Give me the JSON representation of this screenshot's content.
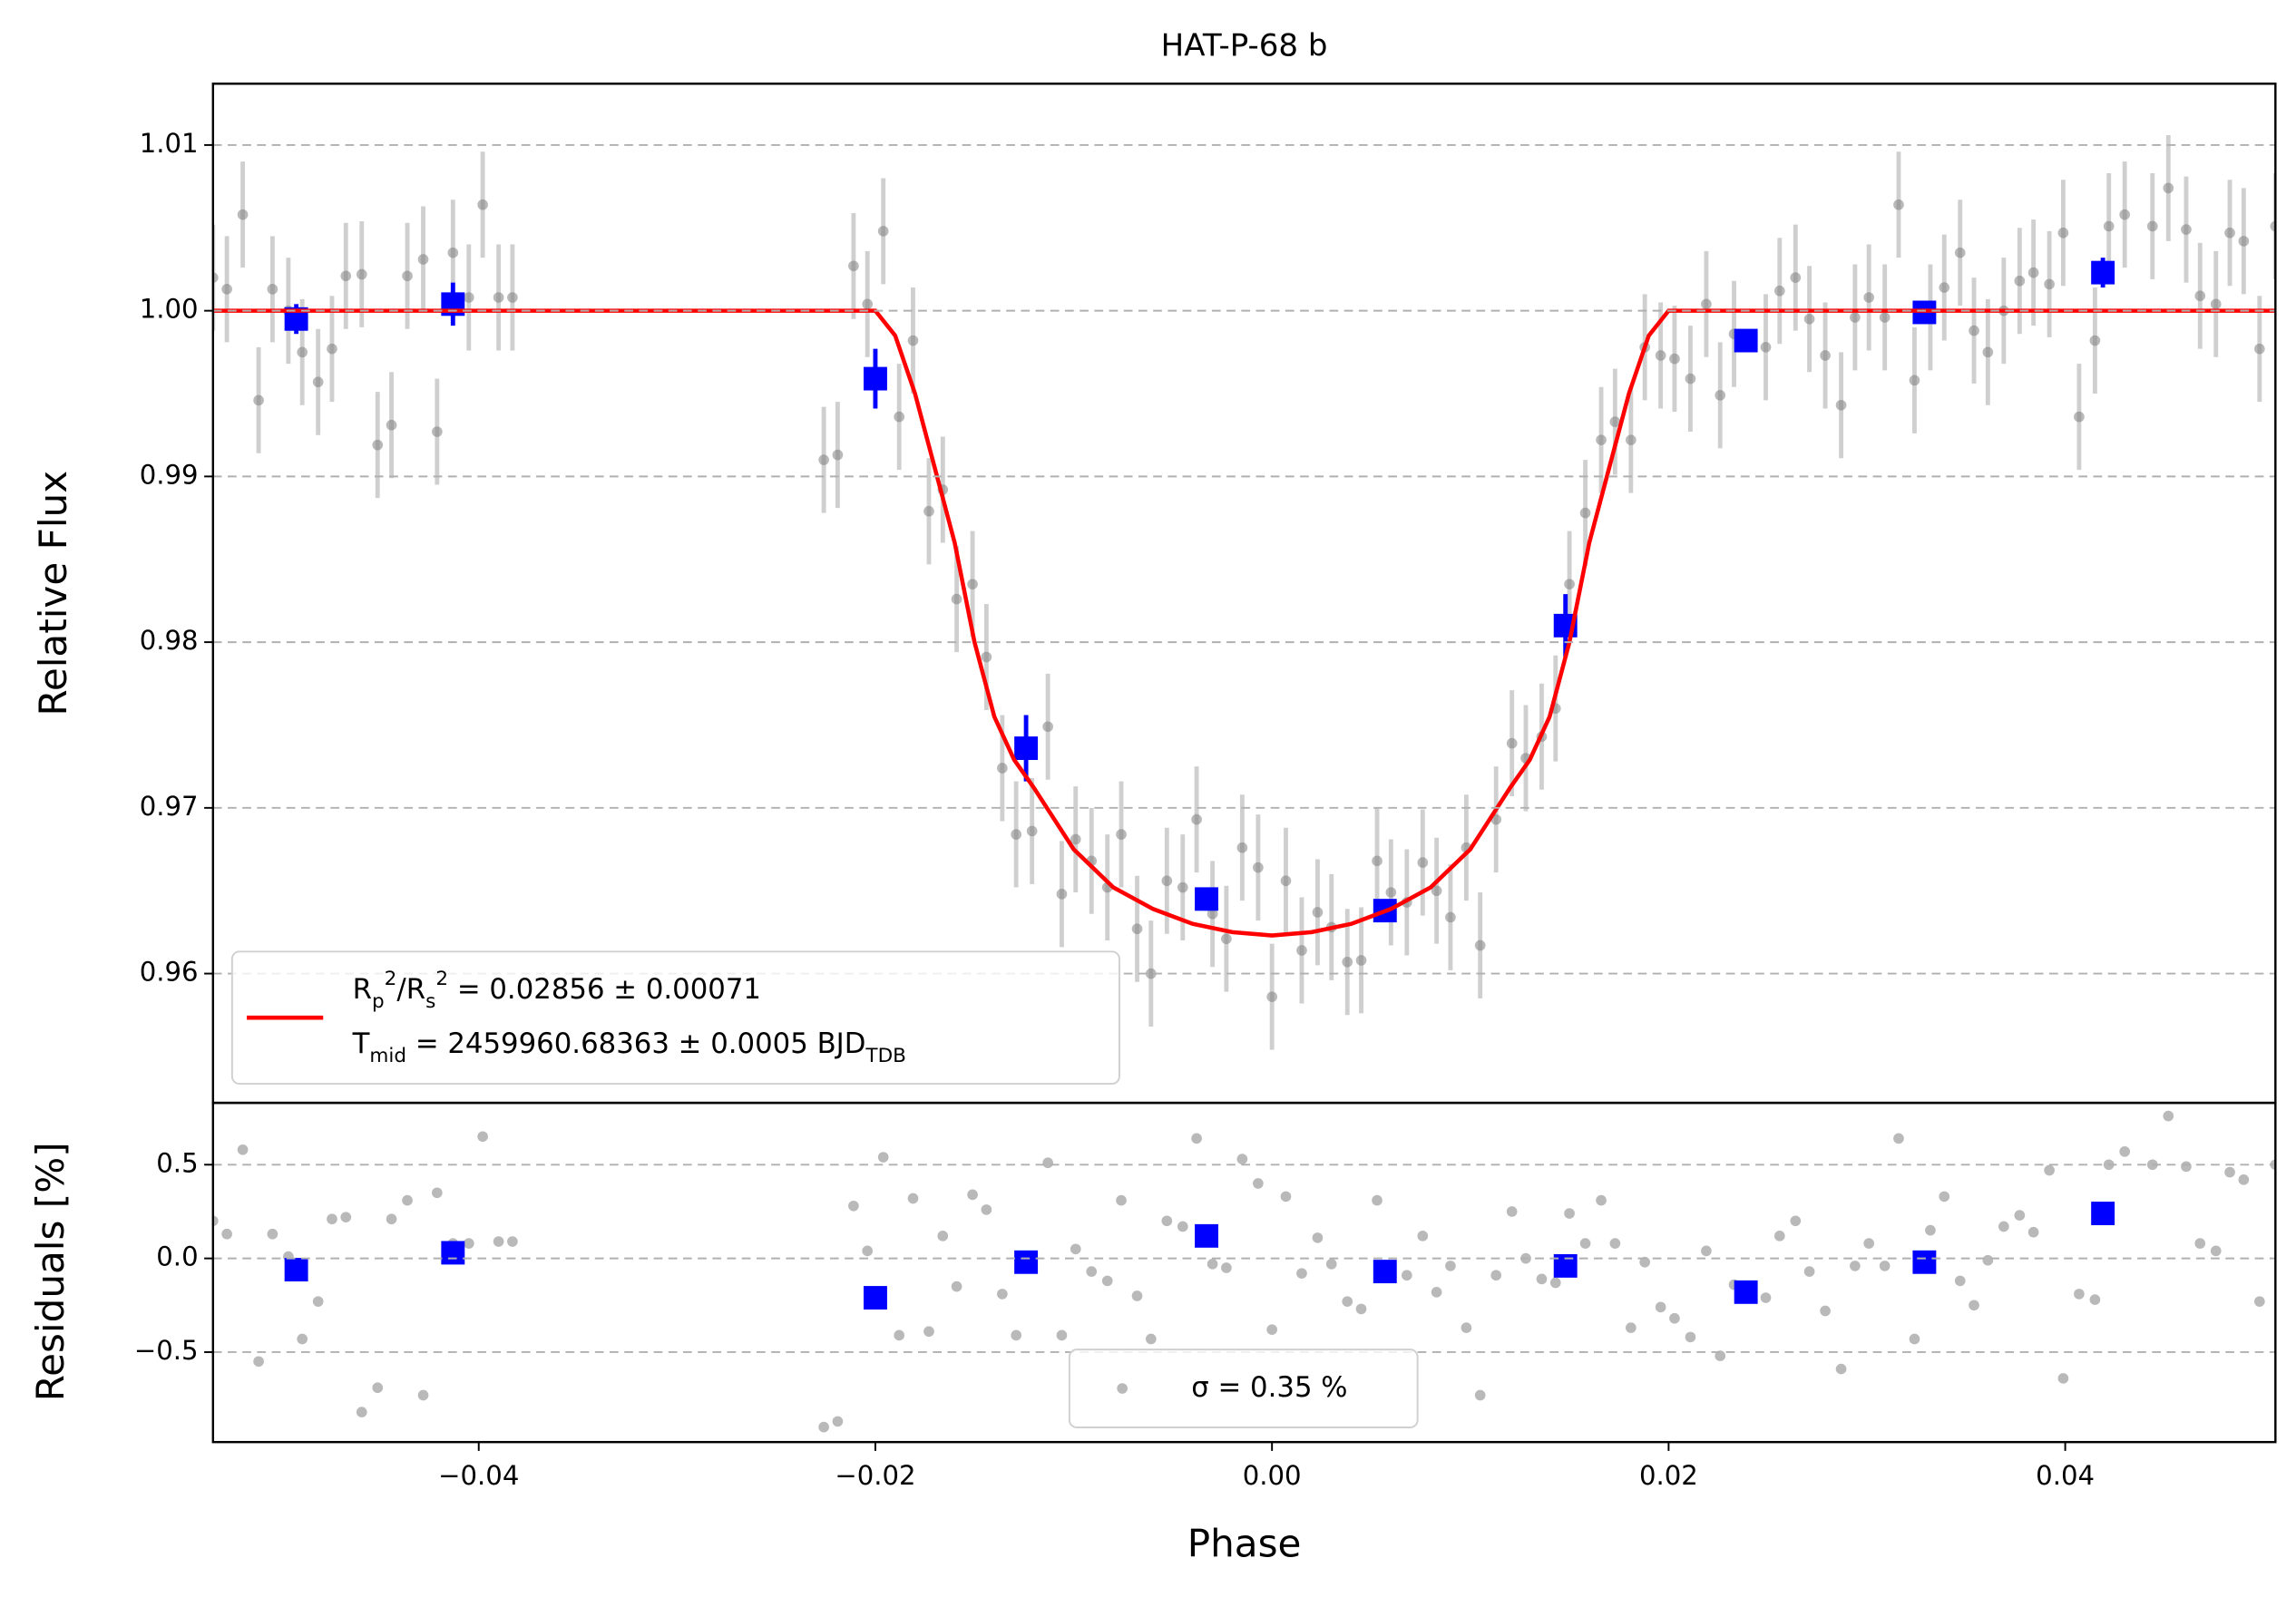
{
  "chart_data": [
    {
      "type": "scatter",
      "title": "HAT-P-68 b",
      "ylabel": "Relative Flux",
      "xlim": [
        -0.0534,
        0.0506
      ],
      "ylim": [
        0.9522,
        1.0137
      ],
      "yticks": [
        0.96,
        0.97,
        0.98,
        0.99,
        {
          "value": 1.0,
          "label": "1.00"
        },
        1.01
      ],
      "grid": true,
      "legend": "lower left",
      "series": [
        {
          "kind": "points",
          "color": "#808080",
          "yerr": 0.0032,
          "x": [
            -0.0534,
            -0.0527,
            -0.0519,
            -0.0511,
            -0.0504,
            -0.0496,
            -0.0489,
            -0.0481,
            -0.0474,
            -0.0467,
            -0.0459,
            -0.0451,
            -0.0444,
            -0.0436,
            -0.0428,
            -0.0421,
            -0.0413,
            -0.0405,
            -0.0398,
            -0.039,
            -0.0383,
            -0.0226,
            -0.0219,
            -0.0211,
            -0.0204,
            -0.0196,
            -0.0188,
            -0.0181,
            -0.0173,
            -0.0166,
            -0.0159,
            -0.0151,
            -0.0144,
            -0.0136,
            -0.0129,
            -0.0121,
            -0.0113,
            -0.0106,
            -0.0099,
            -0.0091,
            -0.0083,
            -0.0076,
            -0.0068,
            -0.0061,
            -0.0053,
            -0.0045,
            -0.0038,
            -0.003,
            -0.0023,
            -0.0015,
            -0.0007,
            0.0,
            0.0007,
            0.0015,
            0.0023,
            0.003,
            0.0038,
            0.0045,
            0.0053,
            0.006,
            0.0068,
            0.0076,
            0.0083,
            0.009,
            0.0098,
            0.0105,
            0.0113,
            0.0121,
            0.0128,
            0.0136,
            0.0143,
            0.015,
            0.0158,
            0.0166,
            0.0173,
            0.0181,
            0.0188,
            0.0196,
            0.0203,
            0.0211,
            0.0219,
            0.0226,
            0.0233,
            0.0249,
            0.0256,
            0.0264,
            0.0271,
            0.0279,
            0.0287,
            0.0294,
            0.0301,
            0.0309,
            0.0316,
            0.0324,
            0.0332,
            0.0339,
            0.0347,
            0.0354,
            0.0361,
            0.0369,
            0.0377,
            0.0384,
            0.0392,
            0.0399,
            0.0407,
            0.0415,
            0.0422,
            0.043,
            0.0444,
            0.0452,
            0.0461,
            0.0468,
            0.0476,
            0.0483,
            0.049,
            0.0498,
            0.0506
          ],
          "values": [
            1.002,
            1.0013,
            1.0058,
            0.9946,
            1.0013,
            1.0,
            0.9975,
            0.9957,
            0.9977,
            1.0021,
            1.0022,
            0.9919,
            0.9931,
            1.0021,
            1.0031,
            0.9927,
            1.0035,
            1.0008,
            1.0064,
            1.0008,
            1.0008,
            0.991,
            0.9913,
            1.0027,
            1.0004,
            1.0048,
            0.9936,
            0.9982,
            0.9879,
            0.9892,
            0.9826,
            0.9835,
            0.9791,
            0.9724,
            0.9684,
            0.9686,
            0.9749,
            0.9648,
            0.9681,
            0.9668,
            0.9652,
            0.9684,
            0.9627,
            0.96,
            0.9656,
            0.9652,
            0.9693,
            0.9636,
            0.9621,
            0.9676,
            0.9664,
            0.9586,
            0.9656,
            0.9614,
            0.9637,
            0.9628,
            0.9607,
            0.9608,
            0.9668,
            0.9649,
            0.9643,
            0.9667,
            0.965,
            0.9634,
            0.9676,
            0.9617,
            0.9693,
            0.9739,
            0.973,
            0.9743,
            0.976,
            0.9835,
            0.9878,
            0.9922,
            0.9933,
            0.9922,
            0.9978,
            0.9973,
            0.9971,
            0.9959,
            1.0004,
            0.9949,
            0.9986,
            0.9978,
            1.0012,
            1.002,
            0.9995,
            0.9973,
            0.9943,
            0.9996,
            1.0008,
            0.9996,
            1.0064,
            0.9958,
            0.9996,
            1.0014,
            1.0035,
            0.9988,
            0.9975,
            1.0,
            1.0018,
            1.0023,
            1.0016,
            1.0047,
            0.9936,
            0.9982,
            1.0051,
            1.0058,
            1.0051,
            1.0074,
            1.0049,
            1.0009,
            1.0004,
            1.0047,
            1.0042,
            0.9977,
            1.0051
          ]
        },
        {
          "kind": "binned",
          "color": "#0000ff",
          "x": [
            -0.0492,
            -0.0413,
            -0.02,
            -0.0124,
            -0.0033,
            0.0057,
            0.0148,
            0.0239,
            0.0329,
            0.0419
          ],
          "values": [
            0.9995,
            1.0004,
            0.9959,
            0.9736,
            0.9645,
            0.9638,
            0.981,
            0.9982,
            0.9999,
            1.0023
          ],
          "yerr": [
            0.0009,
            0.0013,
            0.0018,
            0.002,
            0.0007,
            0.0004,
            0.0019,
            0.0003,
            0.0005,
            0.0009
          ]
        },
        {
          "kind": "line",
          "color": "#ff0000",
          "name": [
            "R_{p}^{2}/R_{s}^{2} = 0.02856 ± 0.00071",
            "T_{mid} = 2459960.68363 ± 0.0005 BJD_{TDB}"
          ],
          "x": [
            -0.0534,
            -0.02,
            -0.019,
            -0.018,
            -0.017,
            -0.016,
            -0.015,
            -0.014,
            -0.013,
            -0.012,
            -0.01,
            -0.008,
            -0.006,
            -0.004,
            -0.002,
            0.0,
            0.002,
            0.004,
            0.006,
            0.008,
            0.01,
            0.012,
            0.013,
            0.014,
            0.015,
            0.016,
            0.017,
            0.018,
            0.019,
            0.02,
            0.0506
          ],
          "values": [
            1.0,
            1.0,
            0.9985,
            0.995,
            0.9905,
            0.986,
            0.98,
            0.9755,
            0.9729,
            0.9712,
            0.9675,
            0.9652,
            0.9639,
            0.963,
            0.9625,
            0.9623,
            0.9625,
            0.963,
            0.9639,
            0.9652,
            0.9675,
            0.9712,
            0.9729,
            0.9755,
            0.98,
            0.986,
            0.9905,
            0.995,
            0.9985,
            1.0,
            1.0
          ]
        }
      ]
    },
    {
      "type": "scatter",
      "ylabel": "Residuals [%]",
      "xlabel": "Phase",
      "xlim": [
        -0.0534,
        0.0506
      ],
      "ylim": [
        -0.98,
        0.83
      ],
      "xticks": [
        {
          "value": -0.04,
          "label": "−0.04"
        },
        {
          "value": -0.02,
          "label": "−0.02"
        },
        {
          "value": 0.0,
          "label": "0.00"
        },
        {
          "value": 0.02,
          "label": "0.02"
        },
        {
          "value": 0.04,
          "label": "0.04"
        }
      ],
      "yticks": [
        {
          "value": -0.5,
          "label": "−0.5"
        },
        {
          "value": 0.0,
          "label": "0.0"
        },
        0.5
      ],
      "grid": true,
      "legend": "lower center",
      "series": [
        {
          "kind": "points",
          "color": "#808080",
          "name": "σ = 0.35 %",
          "x": [
            -0.0534,
            -0.0527,
            -0.0519,
            -0.0511,
            -0.0504,
            -0.0496,
            -0.0489,
            -0.0481,
            -0.0474,
            -0.0467,
            -0.0459,
            -0.0451,
            -0.0444,
            -0.0436,
            -0.0428,
            -0.0421,
            -0.0413,
            -0.0405,
            -0.0398,
            -0.039,
            -0.0383,
            -0.0226,
            -0.0219,
            -0.0211,
            -0.0204,
            -0.0196,
            -0.0188,
            -0.0181,
            -0.0173,
            -0.0166,
            -0.0159,
            -0.0151,
            -0.0144,
            -0.0136,
            -0.0129,
            -0.0121,
            -0.0113,
            -0.0106,
            -0.0099,
            -0.0091,
            -0.0083,
            -0.0076,
            -0.0068,
            -0.0061,
            -0.0053,
            -0.0045,
            -0.0038,
            -0.003,
            -0.0023,
            -0.0015,
            -0.0007,
            0.0,
            0.0007,
            0.0015,
            0.0023,
            0.003,
            0.0038,
            0.0045,
            0.0053,
            0.006,
            0.0068,
            0.0076,
            0.0083,
            0.009,
            0.0098,
            0.0105,
            0.0113,
            0.0121,
            0.0128,
            0.0136,
            0.0143,
            0.015,
            0.0158,
            0.0166,
            0.0173,
            0.0181,
            0.0188,
            0.0196,
            0.0203,
            0.0211,
            0.0219,
            0.0226,
            0.0233,
            0.0249,
            0.0256,
            0.0264,
            0.0271,
            0.0279,
            0.0287,
            0.0294,
            0.0301,
            0.0309,
            0.0316,
            0.0324,
            0.0332,
            0.0339,
            0.0347,
            0.0354,
            0.0361,
            0.0369,
            0.0377,
            0.0384,
            0.0392,
            0.0399,
            0.0407,
            0.0415,
            0.0422,
            0.043,
            0.0444,
            0.0452,
            0.0461,
            0.0468,
            0.0476,
            0.0483,
            0.049,
            0.0498,
            0.0506
          ],
          "values": [
            0.2,
            0.13,
            0.58,
            -0.55,
            0.13,
            0.01,
            -0.43,
            -0.23,
            0.21,
            0.22,
            -0.82,
            -0.69,
            0.21,
            0.31,
            -0.73,
            0.35,
            0.08,
            0.08,
            0.65,
            0.09,
            0.09,
            -0.9,
            -0.87,
            0.28,
            0.04,
            0.54,
            -0.41,
            0.32,
            -0.39,
            0.12,
            -0.15,
            0.34,
            0.26,
            -0.19,
            -0.41,
            -0.04,
            0.51,
            -0.41,
            0.05,
            -0.07,
            -0.12,
            0.31,
            -0.2,
            -0.43,
            0.2,
            0.17,
            0.64,
            -0.03,
            -0.05,
            0.53,
            0.4,
            -0.38,
            0.33,
            -0.08,
            0.11,
            -0.03,
            -0.23,
            -0.27,
            0.31,
            -0.06,
            -0.09,
            0.12,
            -0.18,
            -0.04,
            -0.37,
            -0.73,
            -0.09,
            0.25,
            0.0,
            -0.11,
            -0.13,
            0.24,
            0.08,
            0.31,
            0.08,
            -0.37,
            -0.02,
            -0.26,
            -0.32,
            -0.42,
            0.04,
            -0.52,
            -0.14,
            -0.21,
            0.12,
            0.2,
            -0.07,
            -0.28,
            -0.59,
            -0.04,
            0.08,
            -0.04,
            0.64,
            -0.43,
            0.15,
            0.33,
            -0.12,
            -0.25,
            -0.01,
            0.17,
            0.23,
            0.14,
            0.47,
            -0.64,
            -0.19,
            -0.22,
            0.5,
            0.57,
            0.5,
            0.76,
            0.49,
            0.08,
            0.04,
            0.46,
            0.42,
            -0.23,
            0.5
          ]
        },
        {
          "kind": "binned",
          "color": "#0000ff",
          "x": [
            -0.0492,
            -0.0413,
            -0.02,
            -0.0124,
            -0.0033,
            0.0057,
            0.0148,
            0.0239,
            0.0329,
            0.0419
          ],
          "values": [
            -0.06,
            0.03,
            -0.21,
            -0.02,
            0.12,
            -0.07,
            -0.04,
            -0.18,
            -0.02,
            0.24
          ]
        }
      ]
    }
  ]
}
